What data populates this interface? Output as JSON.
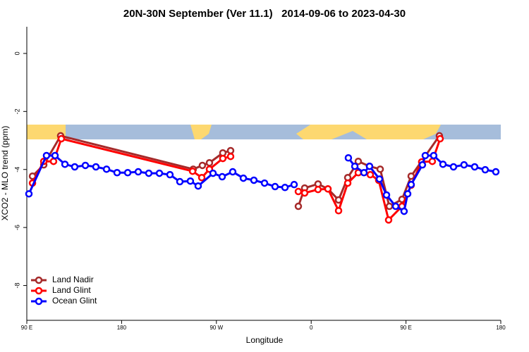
{
  "chart_data": {
    "type": "line",
    "title": "20N-30N September (Ver 11.1)   2014-09-06 to 2023-04-30",
    "xlabel": "Longitude",
    "ylabel": "XCO2 - MLO trend (ppm)",
    "xlim": [
      90,
      540
    ],
    "xticks": [
      {
        "value": 90,
        "label": "90 E"
      },
      {
        "value": 180,
        "label": "180"
      },
      {
        "value": 270,
        "label": "90 W"
      },
      {
        "value": 360,
        "label": "0"
      },
      {
        "value": 450,
        "label": "90 E"
      },
      {
        "value": 540,
        "label": "180"
      }
    ],
    "ylim": [
      -9.2,
      0.92
    ],
    "yticks": [
      0,
      -2,
      -4,
      -6,
      -8
    ],
    "legend": "bottom-left",
    "series": [
      {
        "name": "Land Nadir",
        "color": "#a52a2a",
        "x": [
          95.4,
          106.1,
          122.1,
          248.0,
          256.7,
          263.4,
          276.1,
          283.5,
          null,
          347.8,
          353.8,
          366.5,
          375.9,
          386.0,
          394.7,
          404.7,
          415.4,
          425.5,
          434.2,
          446.2,
          454.9,
          481.7
        ],
        "values": [
          -4.23,
          -3.84,
          -2.84,
          -3.99,
          -3.86,
          -3.77,
          -3.43,
          -3.35,
          null,
          -5.27,
          -4.64,
          -4.5,
          -4.67,
          -5.05,
          -4.28,
          -3.72,
          -3.89,
          -3.99,
          -5.27,
          -5.03,
          -4.23,
          -2.84
        ]
      },
      {
        "name": "Land Glint",
        "color": "#ff0000",
        "x": [
          95.4,
          106.1,
          115.4,
          122.8,
          247.4,
          256.1,
          263.4,
          276.1,
          283.5,
          null,
          347.8,
          353.8,
          366.5,
          375.9,
          386.0,
          394.7,
          404.7,
          416.1,
          424.1,
          433.5,
          446.2,
          454.9,
          464.9,
          475.0,
          482.4
        ],
        "values": [
          -4.47,
          -3.72,
          -3.72,
          -2.94,
          -4.06,
          -4.28,
          -3.99,
          -3.62,
          -3.55,
          null,
          -4.76,
          -4.81,
          -4.69,
          -4.67,
          -5.42,
          -4.47,
          -4.11,
          -4.18,
          -4.37,
          -5.74,
          -5.27,
          -4.54,
          -3.74,
          -3.72,
          -2.94
        ]
      },
      {
        "name": "Ocean Glint",
        "color": "#0000ff",
        "x": [
          92.0,
          108.7,
          116.8,
          126.2,
          135.5,
          145.6,
          155.6,
          165.7,
          175.7,
          185.8,
          195.8,
          205.8,
          215.9,
          225.9,
          235.3,
          245.3,
          252.7,
          266.8,
          275.5,
          285.5,
          295.6,
          305.6,
          315.7,
          325.7,
          335.1,
          343.8,
          null,
          395.3,
          401.4,
          410.1,
          415.4,
          424.8,
          431.5,
          440.2,
          448.2,
          451.6,
          454.9,
          465.6,
          468.3,
          476.3,
          485.1,
          495.1,
          505.1,
          515.2,
          525.2,
          535.3
        ],
        "values": [
          -4.84,
          -3.52,
          -3.52,
          -3.82,
          -3.91,
          -3.86,
          -3.91,
          -3.99,
          -4.11,
          -4.11,
          -4.08,
          -4.13,
          -4.13,
          -4.18,
          -4.42,
          -4.4,
          -4.57,
          -4.13,
          -4.25,
          -4.08,
          -4.3,
          -4.37,
          -4.47,
          -4.59,
          -4.62,
          -4.52,
          null,
          -3.6,
          -3.89,
          -4.11,
          -3.89,
          -4.33,
          -4.88,
          -5.27,
          -5.44,
          -4.84,
          -4.52,
          -3.84,
          -3.52,
          -3.52,
          -3.82,
          -3.91,
          -3.84,
          -3.91,
          -4.01,
          -4.08
        ]
      }
    ]
  }
}
